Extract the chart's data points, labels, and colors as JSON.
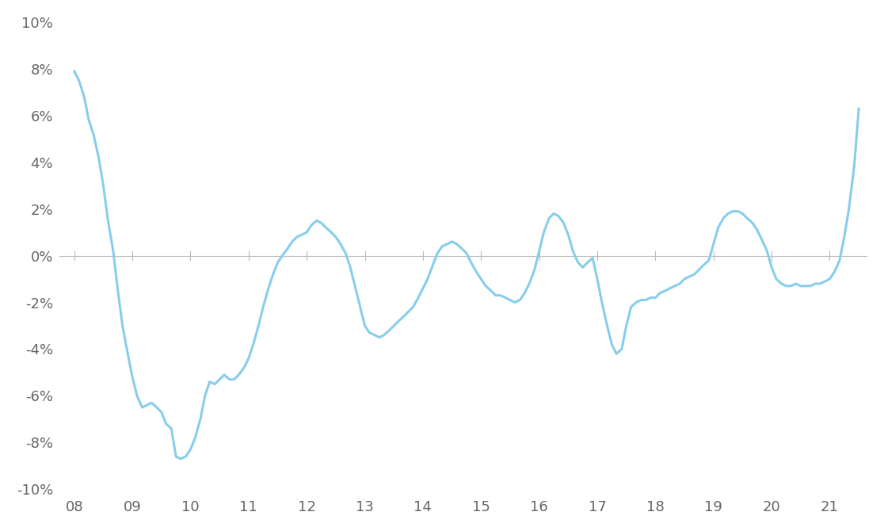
{
  "line_color": "#87CEEB",
  "line_width": 2.2,
  "background_color": "#ffffff",
  "zero_line_color": "#bbbbbb",
  "tick_label_color": "#666666",
  "ylim": [
    -0.1,
    0.1
  ],
  "yticks": [
    -0.1,
    -0.08,
    -0.06,
    -0.04,
    -0.02,
    0.0,
    0.02,
    0.04,
    0.06,
    0.08,
    0.1
  ],
  "xtick_labels": [
    "08",
    "09",
    "10",
    "11",
    "12",
    "13",
    "14",
    "15",
    "16",
    "17",
    "18",
    "19",
    "20",
    "21"
  ],
  "x_values": [
    2008.0,
    2008.08,
    2008.17,
    2008.25,
    2008.33,
    2008.42,
    2008.5,
    2008.58,
    2008.67,
    2008.75,
    2008.83,
    2008.92,
    2009.0,
    2009.08,
    2009.17,
    2009.25,
    2009.33,
    2009.42,
    2009.5,
    2009.58,
    2009.67,
    2009.75,
    2009.83,
    2009.92,
    2010.0,
    2010.08,
    2010.17,
    2010.25,
    2010.33,
    2010.42,
    2010.5,
    2010.58,
    2010.67,
    2010.75,
    2010.83,
    2010.92,
    2011.0,
    2011.08,
    2011.17,
    2011.25,
    2011.33,
    2011.42,
    2011.5,
    2011.58,
    2011.67,
    2011.75,
    2011.83,
    2011.92,
    2012.0,
    2012.08,
    2012.17,
    2012.25,
    2012.33,
    2012.42,
    2012.5,
    2012.58,
    2012.67,
    2012.75,
    2012.83,
    2012.92,
    2013.0,
    2013.08,
    2013.17,
    2013.25,
    2013.33,
    2013.42,
    2013.5,
    2013.58,
    2013.67,
    2013.75,
    2013.83,
    2013.92,
    2014.0,
    2014.08,
    2014.17,
    2014.25,
    2014.33,
    2014.42,
    2014.5,
    2014.58,
    2014.67,
    2014.75,
    2014.83,
    2014.92,
    2015.0,
    2015.08,
    2015.17,
    2015.25,
    2015.33,
    2015.42,
    2015.5,
    2015.58,
    2015.67,
    2015.75,
    2015.83,
    2015.92,
    2016.0,
    2016.08,
    2016.17,
    2016.25,
    2016.33,
    2016.42,
    2016.5,
    2016.58,
    2016.67,
    2016.75,
    2016.83,
    2016.92,
    2017.0,
    2017.08,
    2017.17,
    2017.25,
    2017.33,
    2017.42,
    2017.5,
    2017.58,
    2017.67,
    2017.75,
    2017.83,
    2017.92,
    2018.0,
    2018.08,
    2018.17,
    2018.25,
    2018.33,
    2018.42,
    2018.5,
    2018.58,
    2018.67,
    2018.75,
    2018.83,
    2018.92,
    2019.0,
    2019.08,
    2019.17,
    2019.25,
    2019.33,
    2019.42,
    2019.5,
    2019.58,
    2019.67,
    2019.75,
    2019.83,
    2019.92,
    2020.0,
    2020.08,
    2020.17,
    2020.25,
    2020.33,
    2020.42,
    2020.5,
    2020.58,
    2020.67,
    2020.75,
    2020.83,
    2020.92,
    2021.0,
    2021.08,
    2021.17,
    2021.25,
    2021.33,
    2021.42,
    2021.5
  ],
  "y_values": [
    0.079,
    0.075,
    0.068,
    0.058,
    0.052,
    0.042,
    0.03,
    0.015,
    0.002,
    -0.015,
    -0.03,
    -0.042,
    -0.052,
    -0.06,
    -0.065,
    -0.064,
    -0.063,
    -0.065,
    -0.067,
    -0.072,
    -0.074,
    -0.086,
    -0.087,
    -0.086,
    -0.083,
    -0.078,
    -0.07,
    -0.06,
    -0.054,
    -0.055,
    -0.053,
    -0.051,
    -0.053,
    -0.053,
    -0.051,
    -0.048,
    -0.044,
    -0.038,
    -0.03,
    -0.022,
    -0.015,
    -0.008,
    -0.003,
    0.0,
    0.003,
    0.006,
    0.008,
    0.009,
    0.01,
    0.013,
    0.015,
    0.014,
    0.012,
    0.01,
    0.008,
    0.005,
    0.001,
    -0.005,
    -0.013,
    -0.022,
    -0.03,
    -0.033,
    -0.034,
    -0.035,
    -0.034,
    -0.032,
    -0.03,
    -0.028,
    -0.026,
    -0.024,
    -0.022,
    -0.018,
    -0.014,
    -0.01,
    -0.004,
    0.001,
    0.004,
    0.005,
    0.006,
    0.005,
    0.003,
    0.001,
    -0.003,
    -0.007,
    -0.01,
    -0.013,
    -0.015,
    -0.017,
    -0.017,
    -0.018,
    -0.019,
    -0.02,
    -0.019,
    -0.016,
    -0.012,
    -0.006,
    0.002,
    0.01,
    0.016,
    0.018,
    0.017,
    0.014,
    0.009,
    0.002,
    -0.003,
    -0.005,
    -0.003,
    -0.001,
    -0.01,
    -0.02,
    -0.03,
    -0.038,
    -0.042,
    -0.04,
    -0.03,
    -0.022,
    -0.02,
    -0.019,
    -0.019,
    -0.018,
    -0.018,
    -0.016,
    -0.015,
    -0.014,
    -0.013,
    -0.012,
    -0.01,
    -0.009,
    -0.008,
    -0.006,
    -0.004,
    -0.002,
    0.005,
    0.012,
    0.016,
    0.018,
    0.019,
    0.019,
    0.018,
    0.016,
    0.014,
    0.011,
    0.007,
    0.002,
    -0.005,
    -0.01,
    -0.012,
    -0.013,
    -0.013,
    -0.012,
    -0.013,
    -0.013,
    -0.013,
    -0.012,
    -0.012,
    -0.011,
    -0.01,
    -0.007,
    -0.002,
    0.008,
    0.02,
    0.038,
    0.063
  ],
  "xlim_left": 2007.75,
  "xlim_right": 2021.65
}
